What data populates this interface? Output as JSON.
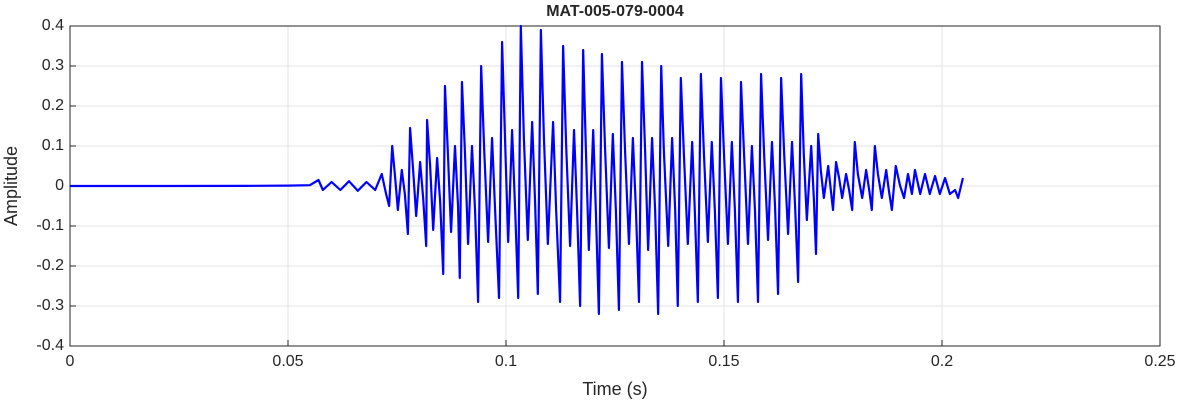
{
  "chart_data": {
    "type": "line",
    "title": "MAT-005-079-0004",
    "x_label": "Time (s)",
    "y_label": "Amplitude",
    "color": "#0000ff",
    "grid": true,
    "xlim": [
      0,
      0.25
    ],
    "xticks": [
      0,
      0.05,
      0.1,
      0.15,
      0.2,
      0.25
    ],
    "ylim": [
      -0.4,
      0.4
    ],
    "yticks": [
      -0.4,
      -0.3,
      -0.2,
      -0.1,
      0,
      0.1,
      0.2,
      0.3,
      0.4
    ],
    "x": [
      0,
      0.02,
      0.04,
      0.05,
      0.055,
      0.057,
      0.058,
      0.06,
      0.062,
      0.064,
      0.066,
      0.068,
      0.07,
      0.0715,
      0.0725,
      0.0732,
      0.0739,
      0.0745,
      0.0752,
      0.0761,
      0.0768,
      0.0775,
      0.078,
      0.0787,
      0.0794,
      0.0803,
      0.081,
      0.0817,
      0.0819,
      0.0826,
      0.0833,
      0.0842,
      0.0849,
      0.0856,
      0.086,
      0.0867,
      0.0874,
      0.0883,
      0.089,
      0.0894,
      0.0899,
      0.0906,
      0.0913,
      0.0922,
      0.0929,
      0.0936,
      0.0943,
      0.095,
      0.0959,
      0.0968,
      0.0975,
      0.0984,
      0.0991,
      0.0998,
      0.1005,
      0.1014,
      0.1021,
      0.1028,
      0.1034,
      0.1041,
      0.105,
      0.106,
      0.1067,
      0.1073,
      0.108,
      0.1087,
      0.1096,
      0.1108,
      0.1115,
      0.1124,
      0.1131,
      0.1138,
      0.1147,
      0.1156,
      0.1163,
      0.117,
      0.1177,
      0.1183,
      0.119,
      0.12,
      0.1206,
      0.1213,
      0.122,
      0.1227,
      0.1236,
      0.1245,
      0.1252,
      0.1259,
      0.1266,
      0.1273,
      0.1282,
      0.1291,
      0.1298,
      0.1305,
      0.1312,
      0.1319,
      0.1326,
      0.1335,
      0.1342,
      0.1349,
      0.1356,
      0.1362,
      0.1372,
      0.1381,
      0.1388,
      0.1394,
      0.1401,
      0.1408,
      0.1417,
      0.1427,
      0.1433,
      0.144,
      0.1447,
      0.1454,
      0.1463,
      0.1472,
      0.1479,
      0.1486,
      0.1493,
      0.15,
      0.1509,
      0.1518,
      0.1525,
      0.1532,
      0.1539,
      0.1546,
      0.1555,
      0.1564,
      0.1571,
      0.1578,
      0.1585,
      0.1592,
      0.1601,
      0.161,
      0.1617,
      0.1624,
      0.1631,
      0.1638,
      0.1647,
      0.1656,
      0.1663,
      0.167,
      0.1677,
      0.1683,
      0.169,
      0.17,
      0.1706,
      0.1711,
      0.1716,
      0.1722,
      0.1729,
      0.1739,
      0.1745,
      0.175,
      0.1757,
      0.1764,
      0.1771,
      0.178,
      0.1787,
      0.1794,
      0.18,
      0.1807,
      0.1817,
      0.1826,
      0.1833,
      0.1839,
      0.1846,
      0.1853,
      0.1862,
      0.1872,
      0.1878,
      0.1885,
      0.1894,
      0.1904,
      0.1913,
      0.1922,
      0.1931,
      0.1938,
      0.195,
      0.1961,
      0.1972,
      0.1984,
      0.1995,
      0.2007,
      0.2018,
      0.203,
      0.2037,
      0.2048
    ],
    "values": [
      0,
      0,
      0.0003,
      0.001,
      0.002,
      0.015,
      -0.01,
      0.01,
      -0.01,
      0.012,
      -0.012,
      0.01,
      -0.01,
      0.03,
      -0.02,
      -0.05,
      0.1,
      0.03,
      -0.06,
      0.04,
      -0.02,
      -0.12,
      0.145,
      0.04,
      -0.075,
      0.06,
      -0.03,
      -0.15,
      0.165,
      0.05,
      -0.11,
      0.07,
      -0.04,
      -0.22,
      0.25,
      0.075,
      -0.115,
      0.1,
      -0.05,
      -0.23,
      0.26,
      0.08,
      -0.145,
      0.1,
      -0.06,
      -0.29,
      0.3,
      0.09,
      -0.14,
      0.12,
      -0.06,
      -0.28,
      0.36,
      0.11,
      -0.14,
      0.14,
      -0.06,
      -0.28,
      0.4,
      0.12,
      -0.135,
      0.16,
      -0.05,
      -0.27,
      0.39,
      0.12,
      -0.145,
      0.16,
      -0.06,
      -0.29,
      0.35,
      0.1,
      -0.15,
      0.14,
      -0.06,
      -0.3,
      0.34,
      0.1,
      -0.16,
      0.14,
      -0.06,
      -0.32,
      0.33,
      0.1,
      -0.155,
      0.13,
      -0.06,
      -0.31,
      0.31,
      0.09,
      -0.145,
      0.12,
      -0.06,
      -0.29,
      0.31,
      0.09,
      -0.16,
      0.12,
      -0.06,
      -0.32,
      0.3,
      0.09,
      -0.15,
      0.12,
      -0.06,
      -0.3,
      0.27,
      0.08,
      -0.145,
      0.11,
      -0.06,
      -0.29,
      0.28,
      0.08,
      -0.14,
      0.11,
      -0.06,
      -0.28,
      0.27,
      0.08,
      -0.145,
      0.11,
      -0.06,
      -0.29,
      0.26,
      0.08,
      -0.145,
      0.1,
      -0.06,
      -0.29,
      0.28,
      0.08,
      -0.135,
      0.11,
      -0.05,
      -0.27,
      0.27,
      0.08,
      -0.12,
      0.11,
      -0.05,
      -0.24,
      0.28,
      0.08,
      -0.085,
      0.1,
      -0.03,
      -0.17,
      0.13,
      0.04,
      -0.03,
      0.05,
      -0.01,
      -0.06,
      0.06,
      0.02,
      -0.03,
      0.03,
      -0.01,
      -0.06,
      0.11,
      0.03,
      -0.03,
      0.04,
      -0.01,
      -0.06,
      0.1,
      0.03,
      -0.03,
      0.04,
      -0.01,
      -0.06,
      0.05,
      0,
      -0.03,
      0.03,
      -0.02,
      0.04,
      -0.02,
      0.03,
      -0.02,
      0.025,
      -0.02,
      0.02,
      -0.02,
      -0.01,
      -0.03,
      0.02
    ]
  }
}
